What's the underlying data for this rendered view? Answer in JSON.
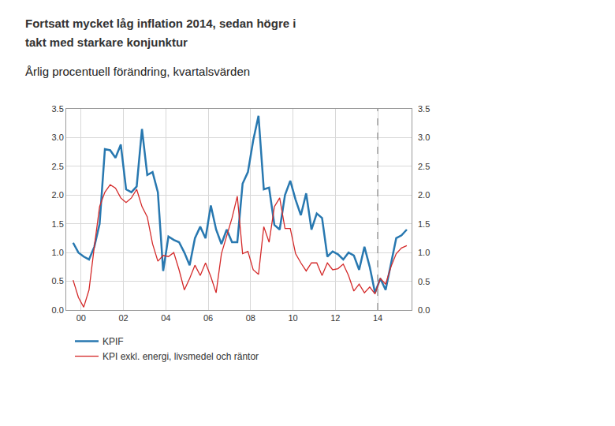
{
  "chart_data": {
    "type": "line",
    "title": [
      "Fortsatt mycket låg inflation 2014, sedan högre i",
      "takt med starkare konjunktur"
    ],
    "subtitle": "Årlig procentuell förändring, kvartalsvärden",
    "x": [
      2000.125,
      2000.375,
      2000.625,
      2000.875,
      2001.125,
      2001.375,
      2001.625,
      2001.875,
      2002.125,
      2002.375,
      2002.625,
      2002.875,
      2003.125,
      2003.375,
      2003.625,
      2003.875,
      2004.125,
      2004.375,
      2004.625,
      2004.875,
      2005.125,
      2005.375,
      2005.625,
      2005.875,
      2006.125,
      2006.375,
      2006.625,
      2006.875,
      2007.125,
      2007.375,
      2007.625,
      2007.875,
      2008.125,
      2008.375,
      2008.625,
      2008.875,
      2009.125,
      2009.375,
      2009.625,
      2009.875,
      2010.125,
      2010.375,
      2010.625,
      2010.875,
      2011.125,
      2011.375,
      2011.625,
      2011.875,
      2012.125,
      2012.375,
      2012.625,
      2012.875,
      2013.125,
      2013.375,
      2013.625,
      2013.875,
      2014.125,
      2014.375,
      2014.625,
      2014.875,
      2015.125,
      2015.375,
      2015.625,
      2015.875
    ],
    "series": [
      {
        "name": "KPIF",
        "color": "#2878b0",
        "values": [
          1.17,
          1.0,
          0.93,
          0.88,
          1.1,
          1.5,
          2.8,
          2.78,
          2.65,
          2.88,
          2.1,
          2.05,
          2.15,
          3.15,
          2.35,
          2.4,
          2.05,
          0.68,
          1.28,
          1.22,
          1.18,
          1.0,
          0.78,
          1.25,
          1.45,
          1.25,
          1.82,
          1.4,
          1.15,
          1.4,
          1.18,
          1.18,
          2.2,
          2.4,
          2.95,
          3.38,
          2.1,
          2.13,
          1.48,
          1.4,
          2.0,
          2.25,
          1.92,
          1.65,
          2.03,
          1.4,
          1.68,
          1.6,
          0.93,
          1.02,
          0.97,
          0.88,
          1.0,
          0.95,
          0.7,
          1.1,
          0.75,
          0.3,
          0.55,
          0.35,
          0.8,
          1.25,
          1.3,
          1.4
        ]
      },
      {
        "name": "KPI exkl. energi, livsmedel och räntor",
        "color": "#d42a2a",
        "values": [
          0.52,
          0.22,
          0.05,
          0.35,
          1.1,
          1.8,
          2.05,
          2.18,
          2.12,
          1.95,
          1.87,
          1.95,
          2.1,
          1.8,
          1.62,
          1.15,
          0.85,
          0.95,
          0.93,
          1.0,
          0.7,
          0.35,
          0.55,
          0.78,
          0.6,
          0.82,
          0.58,
          0.3,
          0.98,
          1.3,
          1.6,
          1.98,
          0.98,
          1.02,
          0.7,
          0.62,
          1.45,
          1.18,
          1.8,
          1.95,
          1.42,
          1.42,
          0.98,
          0.82,
          0.68,
          0.82,
          0.82,
          0.6,
          0.82,
          0.7,
          0.72,
          0.8,
          0.6,
          0.33,
          0.45,
          0.3,
          0.4,
          0.28,
          0.55,
          0.45,
          0.75,
          0.98,
          1.08,
          1.12
        ]
      }
    ],
    "xlim": [
      1999.8,
      2016.1
    ],
    "xticks": [
      {
        "value": 2000.5,
        "label": "00"
      },
      {
        "value": 2002.5,
        "label": "02"
      },
      {
        "value": 2004.5,
        "label": "04"
      },
      {
        "value": 2006.5,
        "label": "06"
      },
      {
        "value": 2008.5,
        "label": "08"
      },
      {
        "value": 2010.5,
        "label": "10"
      },
      {
        "value": 2012.5,
        "label": "12"
      },
      {
        "value": 2014.5,
        "label": "14"
      }
    ],
    "ylim": [
      0,
      3.5
    ],
    "yticks": [
      {
        "value": 0,
        "label": "0.0"
      },
      {
        "value": 0.5,
        "label": "0.5"
      },
      {
        "value": 1,
        "label": "1.0"
      },
      {
        "value": 1.5,
        "label": "1.5"
      },
      {
        "value": 2,
        "label": "2.0"
      },
      {
        "value": 2.5,
        "label": "2.5"
      },
      {
        "value": 3,
        "label": "3.0"
      },
      {
        "value": 3.5,
        "label": "3.5"
      }
    ],
    "vlines": [
      2014.5
    ],
    "grid": true,
    "legend": "bottom left"
  }
}
